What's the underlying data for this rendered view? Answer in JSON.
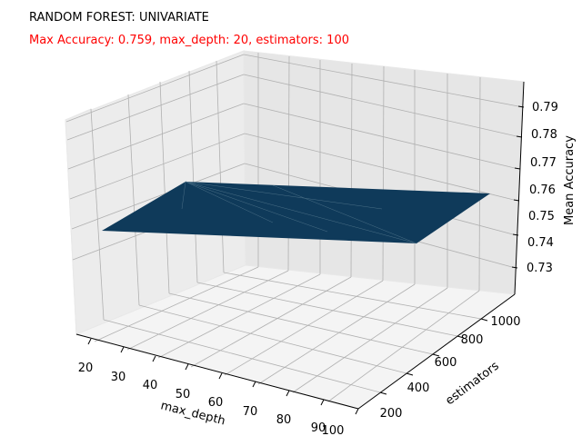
{
  "chart_data": {
    "type": "surface3d",
    "title": "RANDOM FOREST: UNIVARIATE",
    "subtitle": "Max Accuracy: 0.759, max_depth: 20, estimators: 100",
    "subtitle_color": "#ff0000",
    "xlabel": "max_depth",
    "ylabel": "estimators",
    "zlabel": "Mean Accuracy",
    "x_ticks": [
      "20",
      "30",
      "40",
      "50",
      "60",
      "70",
      "80",
      "90",
      "100"
    ],
    "y_ticks": [
      "200",
      "400",
      "600",
      "800",
      "1000"
    ],
    "z_ticks": [
      "0.73",
      "0.74",
      "0.75",
      "0.76",
      "0.77",
      "0.78",
      "0.79"
    ],
    "surface_color": "#0f3a5a",
    "grid": true,
    "points": [
      {
        "max_depth": 20,
        "estimators": 100,
        "accuracy": 0.759
      },
      {
        "max_depth": 20,
        "estimators": 1000,
        "accuracy": 0.757
      },
      {
        "max_depth": 100,
        "estimators": 100,
        "accuracy": 0.757
      },
      {
        "max_depth": 100,
        "estimators": 1000,
        "accuracy": 0.758
      }
    ]
  }
}
